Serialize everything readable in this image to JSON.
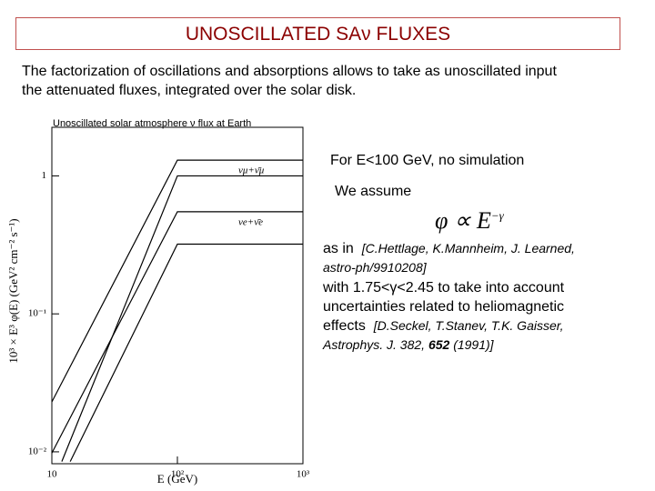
{
  "header": {
    "title": "UNOSCILLATED SAν FLUXES"
  },
  "intro": [
    "The factorization of oscillations and absorptions allows to take as unoscillated input",
    "the attenuated fluxes, integrated  over the solar disk."
  ],
  "notes": {
    "line1": "For E<100 GeV, no simulation",
    "line2": "We assume",
    "formula": {
      "lhs": "φ ∝ E",
      "exponent": "−γ"
    },
    "ref1": {
      "lead": "as  in",
      "citation": "[C.Hettlage,  K.Mannheim,  J.  Learned,",
      "citation2": "astro-ph/9910208]"
    },
    "ref2": {
      "lines": [
        "with  1.75<γ<2.45  to  take  into  account",
        "uncertainties   related   to   heliomagnetic"
      ],
      "lead": "effects",
      "citation": "[D.Seckel,  T.Stanev,  T.K.  Gaisser,",
      "citation2": "Astrophys. J. 382, ",
      "bold": "652",
      "tail": " (1991)]"
    }
  },
  "chart_data": {
    "type": "line",
    "title": "Unoscillated solar atmosphere ν flux at Earth",
    "x_label": "E (GeV)",
    "y_label": "10³ × E³ φ(E) (GeV² cm⁻² s⁻¹)",
    "xscale": "log",
    "yscale": "log",
    "xlim": [
      10,
      1000
    ],
    "ylim": [
      0.0082,
      2.25
    ],
    "xticks": [
      10,
      {
        "value": 100,
        "label": "10²"
      },
      {
        "value": 1000,
        "label": "10³"
      }
    ],
    "yticks": [
      {
        "value": 0.01,
        "label": "10⁻²"
      },
      {
        "value": 0.1,
        "label": "10⁻¹"
      },
      1
    ],
    "series": [
      {
        "name": "νμ+ν̄μ",
        "color": "#000000",
        "x": [
          10,
          100,
          1000
        ],
        "values": [
          0.023,
          1.3,
          1.3
        ]
      },
      {
        "name": "νμ+ν̄μ",
        "color": "#000000",
        "x": [
          12,
          100,
          1000
        ],
        "values": [
          0.0085,
          1.0,
          1.0
        ]
      },
      {
        "name": "νe+ν̄e",
        "color": "#000000",
        "x": [
          10,
          100,
          1000
        ],
        "values": [
          0.0098,
          0.55,
          0.55
        ]
      },
      {
        "name": "νe+ν̄e",
        "color": "#000000",
        "x": [
          14,
          100,
          1000
        ],
        "values": [
          0.0085,
          0.32,
          0.32
        ]
      }
    ]
  }
}
